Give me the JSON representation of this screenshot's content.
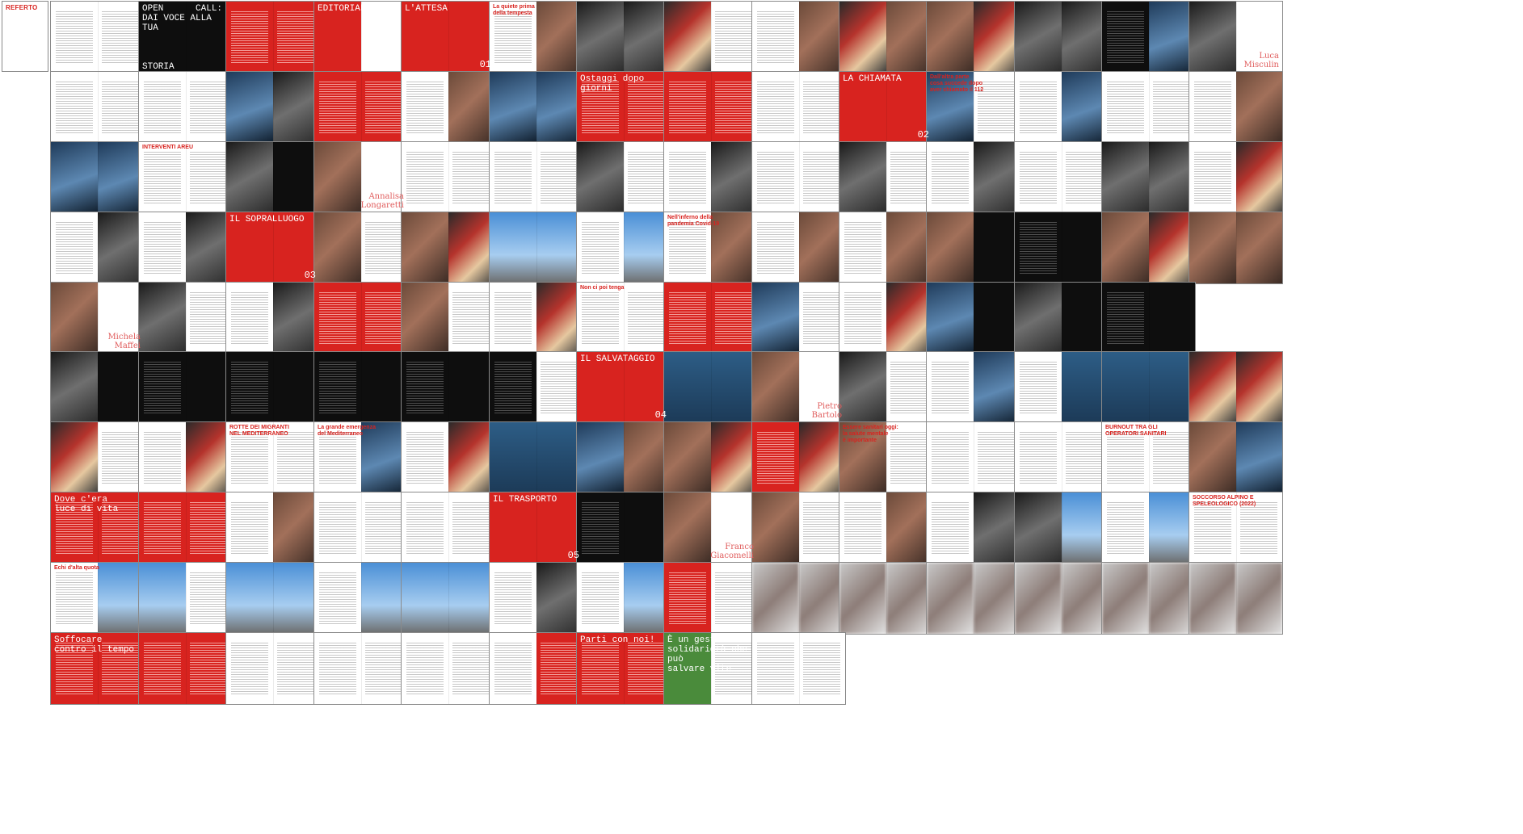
{
  "app": {
    "view": "Page thumbnails overview",
    "publication": "REFERTO"
  },
  "cover": {
    "masthead": "REFERTO"
  },
  "colors": {
    "brand_red": "#d8231f",
    "border": "#8a8a8a",
    "background": "#ffffff",
    "back_cover_green": "#4a8b3b"
  },
  "spreads": [
    {
      "row": 0,
      "col": 1,
      "l": "white",
      "r": "white",
      "label": "",
      "num": ""
    },
    {
      "row": 0,
      "col": 2,
      "l": "dark",
      "r": "dark",
      "label": "OPEN      CALL:\nDAI VOCE ALLA TUA\n\n\n              STORIA",
      "num": ""
    },
    {
      "row": 0,
      "col": 3,
      "l": "red",
      "r": "red",
      "label": "",
      "num": ""
    },
    {
      "row": 0,
      "col": 4,
      "l": "red",
      "r": "white",
      "label": "EDITORIALE",
      "num": ""
    },
    {
      "row": 0,
      "col": 5,
      "l": "red",
      "r": "red",
      "label": "L'ATTESA",
      "num": "01"
    },
    {
      "row": 0,
      "col": 6,
      "l": "white",
      "r": "photo-warm",
      "label": "La quiete prima\ndella tempesta",
      "num": "",
      "style": "red-text"
    },
    {
      "row": 0,
      "col": 7,
      "l": "photo-grey",
      "r": "photo-grey",
      "label": "",
      "num": ""
    },
    {
      "row": 0,
      "col": 8,
      "l": "photo-mix",
      "r": "white",
      "label": "",
      "num": ""
    },
    {
      "row": 0,
      "col": 9,
      "l": "white",
      "r": "photo-warm",
      "label": "",
      "num": ""
    },
    {
      "row": 0,
      "col": 10,
      "l": "photo-mix",
      "r": "photo-warm",
      "label": "",
      "num": ""
    },
    {
      "row": 0,
      "col": 11,
      "l": "photo-warm",
      "r": "photo-mix",
      "label": "",
      "num": ""
    },
    {
      "row": 0,
      "col": 12,
      "l": "photo-grey",
      "r": "photo-grey",
      "label": "",
      "num": ""
    },
    {
      "row": 0,
      "col": 13,
      "l": "dark",
      "r": "photo-cool",
      "label": "",
      "num": ""
    },
    {
      "row": 0,
      "col": 14,
      "l": "photo-grey",
      "r": "white",
      "label": "",
      "num": "",
      "name": "Luca\nMisculin"
    },
    {
      "row": 1,
      "col": 1,
      "l": "white",
      "r": "white",
      "label": "",
      "num": ""
    },
    {
      "row": 1,
      "col": 2,
      "l": "white",
      "r": "white",
      "label": "",
      "num": ""
    },
    {
      "row": 1,
      "col": 3,
      "l": "photo-cool",
      "r": "photo-grey",
      "label": "",
      "num": ""
    },
    {
      "row": 1,
      "col": 4,
      "l": "red",
      "r": "red",
      "label": "",
      "num": ""
    },
    {
      "row": 1,
      "col": 5,
      "l": "white",
      "r": "photo-warm",
      "label": "",
      "num": ""
    },
    {
      "row": 1,
      "col": 6,
      "l": "photo-cool",
      "r": "photo-cool",
      "label": "",
      "num": ""
    },
    {
      "row": 1,
      "col": 7,
      "l": "red",
      "r": "red",
      "label": "Ostaggi dopo giorni",
      "num": "",
      "style": "white-text"
    },
    {
      "row": 1,
      "col": 8,
      "l": "red",
      "r": "red",
      "label": "",
      "num": ""
    },
    {
      "row": 1,
      "col": 9,
      "l": "white",
      "r": "white",
      "label": "",
      "num": ""
    },
    {
      "row": 1,
      "col": 10,
      "l": "red",
      "r": "red",
      "label": "LA CHIAMATA",
      "num": "02"
    },
    {
      "row": 1,
      "col": 11,
      "l": "photo-cool",
      "r": "white",
      "label": "Dall'altra parte\ncosa succede dopo\naver chiamato il 112",
      "num": "",
      "style": "red-text"
    },
    {
      "row": 1,
      "col": 12,
      "l": "white",
      "r": "photo-cool",
      "label": "",
      "num": ""
    },
    {
      "row": 1,
      "col": 13,
      "l": "white",
      "r": "white",
      "label": "",
      "num": ""
    },
    {
      "row": 1,
      "col": 14,
      "l": "white",
      "r": "photo-warm",
      "label": "",
      "num": ""
    },
    {
      "row": 2,
      "col": 1,
      "l": "photo-cool",
      "r": "photo-cool",
      "label": "",
      "num": ""
    },
    {
      "row": 2,
      "col": 2,
      "l": "white",
      "r": "white",
      "label": "INTERVENTI AREU",
      "num": "",
      "style": "red-text"
    },
    {
      "row": 2,
      "col": 3,
      "l": "photo-grey",
      "r": "dark",
      "label": "",
      "num": ""
    },
    {
      "row": 2,
      "col": 4,
      "l": "photo-warm",
      "r": "white",
      "label": "",
      "num": "",
      "name": "Annalisa\nLongaretti"
    },
    {
      "row": 2,
      "col": 5,
      "l": "white",
      "r": "white",
      "label": "",
      "num": ""
    },
    {
      "row": 2,
      "col": 6,
      "l": "white",
      "r": "white",
      "label": "",
      "num": ""
    },
    {
      "row": 2,
      "col": 7,
      "l": "photo-grey",
      "r": "white",
      "label": "",
      "num": ""
    },
    {
      "row": 2,
      "col": 8,
      "l": "white",
      "r": "photo-grey",
      "label": "",
      "num": ""
    },
    {
      "row": 2,
      "col": 9,
      "l": "white",
      "r": "white",
      "label": "",
      "num": ""
    },
    {
      "row": 2,
      "col": 10,
      "l": "photo-grey",
      "r": "white",
      "label": "",
      "num": ""
    },
    {
      "row": 2,
      "col": 11,
      "l": "white",
      "r": "photo-grey",
      "label": "",
      "num": ""
    },
    {
      "row": 2,
      "col": 12,
      "l": "white",
      "r": "white",
      "label": "",
      "num": ""
    },
    {
      "row": 2,
      "col": 13,
      "l": "photo-grey",
      "r": "photo-grey",
      "label": "",
      "num": ""
    },
    {
      "row": 2,
      "col": 14,
      "l": "white",
      "r": "photo-mix",
      "label": "",
      "num": ""
    },
    {
      "row": 3,
      "col": 1,
      "l": "white",
      "r": "photo-grey",
      "label": "",
      "num": ""
    },
    {
      "row": 3,
      "col": 2,
      "l": "white",
      "r": "photo-grey",
      "label": "",
      "num": ""
    },
    {
      "row": 3,
      "col": 3,
      "l": "red",
      "r": "red",
      "label": "IL SOPRALLUOGO",
      "num": "03"
    },
    {
      "row": 3,
      "col": 4,
      "l": "photo-warm",
      "r": "white",
      "label": "",
      "num": ""
    },
    {
      "row": 3,
      "col": 5,
      "l": "photo-warm",
      "r": "photo-mix",
      "label": "",
      "num": ""
    },
    {
      "row": 3,
      "col": 6,
      "l": "photo-sky",
      "r": "photo-sky",
      "label": "",
      "num": ""
    },
    {
      "row": 3,
      "col": 7,
      "l": "white",
      "r": "photo-sky",
      "label": "",
      "num": ""
    },
    {
      "row": 3,
      "col": 8,
      "l": "white",
      "r": "photo-warm",
      "label": "Nell'inferno della\npandemia Covid-19",
      "num": "",
      "style": "red-text"
    },
    {
      "row": 3,
      "col": 9,
      "l": "white",
      "r": "photo-warm",
      "label": "",
      "num": ""
    },
    {
      "row": 3,
      "col": 10,
      "l": "white",
      "r": "photo-warm",
      "label": "",
      "num": ""
    },
    {
      "row": 3,
      "col": 11,
      "l": "photo-warm",
      "r": "dark",
      "label": "",
      "num": ""
    },
    {
      "row": 3,
      "col": 12,
      "l": "dark",
      "r": "dark",
      "label": "",
      "num": ""
    },
    {
      "row": 3,
      "col": 13,
      "l": "photo-warm",
      "r": "photo-mix",
      "label": "",
      "num": ""
    },
    {
      "row": 3,
      "col": 14,
      "l": "photo-warm",
      "r": "photo-warm",
      "label": "",
      "num": ""
    },
    {
      "row": 4,
      "col": 1,
      "l": "photo-warm",
      "r": "white",
      "label": "",
      "num": "",
      "name": "Michela\nMaffei"
    },
    {
      "row": 4,
      "col": 2,
      "l": "photo-grey",
      "r": "white",
      "label": "",
      "num": ""
    },
    {
      "row": 4,
      "col": 3,
      "l": "white",
      "r": "photo-grey",
      "label": "",
      "num": ""
    },
    {
      "row": 4,
      "col": 4,
      "l": "red",
      "r": "red",
      "label": "",
      "num": ""
    },
    {
      "row": 4,
      "col": 5,
      "l": "photo-warm",
      "r": "white",
      "label": "",
      "num": ""
    },
    {
      "row": 4,
      "col": 6,
      "l": "white",
      "r": "photo-mix",
      "label": "",
      "num": ""
    },
    {
      "row": 4,
      "col": 7,
      "l": "white",
      "r": "white",
      "label": "Non ci poi tenga",
      "num": "",
      "style": "red-text"
    },
    {
      "row": 4,
      "col": 8,
      "l": "red",
      "r": "red",
      "label": "",
      "num": ""
    },
    {
      "row": 4,
      "col": 9,
      "l": "photo-cool",
      "r": "white",
      "label": "",
      "num": ""
    },
    {
      "row": 4,
      "col": 10,
      "l": "white",
      "r": "photo-mix",
      "label": "",
      "num": ""
    },
    {
      "row": 4,
      "col": 11,
      "l": "photo-cool",
      "r": "dark",
      "label": "",
      "num": ""
    },
    {
      "row": 4,
      "col": 12,
      "l": "photo-grey",
      "r": "dark",
      "label": "",
      "num": ""
    },
    {
      "row": 4,
      "col": 13,
      "l": "dark",
      "r": "dark",
      "label": "",
      "num": ""
    },
    {
      "row": 5,
      "col": 1,
      "l": "photo-grey",
      "r": "dark",
      "label": "",
      "num": ""
    },
    {
      "row": 5,
      "col": 2,
      "l": "dark",
      "r": "dark",
      "label": "",
      "num": ""
    },
    {
      "row": 5,
      "col": 3,
      "l": "dark",
      "r": "dark",
      "label": "",
      "num": ""
    },
    {
      "row": 5,
      "col": 4,
      "l": "dark",
      "r": "dark",
      "label": "",
      "num": ""
    },
    {
      "row": 5,
      "col": 5,
      "l": "dark",
      "r": "dark",
      "label": "",
      "num": ""
    },
    {
      "row": 5,
      "col": 6,
      "l": "dark",
      "r": "white",
      "label": "",
      "num": ""
    },
    {
      "row": 5,
      "col": 7,
      "l": "red",
      "r": "red",
      "label": "IL SALVATAGGIO",
      "num": "04"
    },
    {
      "row": 5,
      "col": 8,
      "l": "photo-sea",
      "r": "photo-sea",
      "label": "",
      "num": ""
    },
    {
      "row": 5,
      "col": 9,
      "l": "photo-warm",
      "r": "white",
      "label": "",
      "num": "",
      "name": "Pietro\nBartolo"
    },
    {
      "row": 5,
      "col": 10,
      "l": "photo-grey",
      "r": "white",
      "label": "",
      "num": ""
    },
    {
      "row": 5,
      "col": 11,
      "l": "white",
      "r": "photo-cool",
      "label": "",
      "num": ""
    },
    {
      "row": 5,
      "col": 12,
      "l": "white",
      "r": "photo-sea",
      "label": "",
      "num": ""
    },
    {
      "row": 5,
      "col": 13,
      "l": "photo-sea",
      "r": "photo-sea",
      "label": "",
      "num": ""
    },
    {
      "row": 5,
      "col": 14,
      "l": "photo-mix",
      "r": "photo-mix",
      "label": "",
      "num": ""
    },
    {
      "row": 6,
      "col": 1,
      "l": "photo-mix",
      "r": "white",
      "label": "",
      "num": ""
    },
    {
      "row": 6,
      "col": 2,
      "l": "white",
      "r": "photo-mix",
      "label": "",
      "num": ""
    },
    {
      "row": 6,
      "col": 3,
      "l": "white",
      "r": "white",
      "label": "ROTTE DEI MIGRANTI\nNEL MEDITERRANEO",
      "num": "",
      "style": "red-text"
    },
    {
      "row": 6,
      "col": 4,
      "l": "white",
      "r": "photo-cool",
      "label": "La grande emergenza\ndel Mediterraneo",
      "num": "",
      "style": "red-text"
    },
    {
      "row": 6,
      "col": 5,
      "l": "white",
      "r": "photo-mix",
      "label": "",
      "num": ""
    },
    {
      "row": 6,
      "col": 6,
      "l": "photo-sea",
      "r": "photo-sea",
      "label": "",
      "num": ""
    },
    {
      "row": 6,
      "col": 7,
      "l": "photo-cool",
      "r": "photo-warm",
      "label": "",
      "num": ""
    },
    {
      "row": 6,
      "col": 8,
      "l": "photo-warm",
      "r": "photo-mix",
      "label": "",
      "num": ""
    },
    {
      "row": 6,
      "col": 9,
      "l": "red",
      "r": "photo-mix",
      "label": "",
      "num": ""
    },
    {
      "row": 6,
      "col": 10,
      "l": "photo-warm",
      "r": "white",
      "label": "Essere sanitari oggi:\nla salute mentale\nè importante",
      "num": "",
      "style": "red-text"
    },
    {
      "row": 6,
      "col": 11,
      "l": "white",
      "r": "white",
      "label": "",
      "num": ""
    },
    {
      "row": 6,
      "col": 12,
      "l": "white",
      "r": "white",
      "label": "",
      "num": ""
    },
    {
      "row": 6,
      "col": 13,
      "l": "white",
      "r": "white",
      "label": "BURNOUT TRA GLI\nOPERATORI SANITARI",
      "num": "",
      "style": "red-text"
    },
    {
      "row": 6,
      "col": 14,
      "l": "photo-warm",
      "r": "photo-cool",
      "label": "",
      "num": ""
    },
    {
      "row": 7,
      "col": 1,
      "l": "red",
      "r": "red",
      "label": "Dove c'era\nluce di vita",
      "num": "",
      "style": "white-text"
    },
    {
      "row": 7,
      "col": 2,
      "l": "red",
      "r": "red",
      "label": "",
      "num": ""
    },
    {
      "row": 7,
      "col": 3,
      "l": "white",
      "r": "photo-warm",
      "label": "",
      "num": ""
    },
    {
      "row": 7,
      "col": 4,
      "l": "white",
      "r": "white",
      "label": "",
      "num": ""
    },
    {
      "row": 7,
      "col": 5,
      "l": "white",
      "r": "white",
      "label": "",
      "num": ""
    },
    {
      "row": 7,
      "col": 6,
      "l": "red",
      "r": "red",
      "label": "IL TRASPORTO",
      "num": "05"
    },
    {
      "row": 7,
      "col": 7,
      "l": "dark",
      "r": "dark",
      "label": "",
      "num": ""
    },
    {
      "row": 7,
      "col": 8,
      "l": "photo-warm",
      "r": "white",
      "label": "",
      "num": "",
      "name": "Franco\nGiacomelli"
    },
    {
      "row": 7,
      "col": 9,
      "l": "photo-warm",
      "r": "white",
      "label": "",
      "num": ""
    },
    {
      "row": 7,
      "col": 10,
      "l": "white",
      "r": "photo-warm",
      "label": "",
      "num": ""
    },
    {
      "row": 7,
      "col": 11,
      "l": "white",
      "r": "photo-grey",
      "label": "",
      "num": ""
    },
    {
      "row": 7,
      "col": 12,
      "l": "photo-grey",
      "r": "photo-sky",
      "label": "",
      "num": ""
    },
    {
      "row": 7,
      "col": 13,
      "l": "white",
      "r": "photo-sky",
      "label": "",
      "num": ""
    },
    {
      "row": 7,
      "col": 14,
      "l": "white",
      "r": "white",
      "label": "SOCCORSO ALPINO E\nSPELEOLOGICO (2022)",
      "num": "",
      "style": "red-text"
    },
    {
      "row": 8,
      "col": 1,
      "l": "white",
      "r": "photo-sky",
      "label": "Echi d'alta quota",
      "num": "",
      "style": "red-text"
    },
    {
      "row": 8,
      "col": 2,
      "l": "photo-sky",
      "r": "white",
      "label": "",
      "num": ""
    },
    {
      "row": 8,
      "col": 3,
      "l": "photo-sky",
      "r": "photo-sky",
      "label": "",
      "num": ""
    },
    {
      "row": 8,
      "col": 4,
      "l": "white",
      "r": "photo-sky",
      "label": "",
      "num": ""
    },
    {
      "row": 8,
      "col": 5,
      "l": "photo-sky",
      "r": "photo-sky",
      "label": "",
      "num": ""
    },
    {
      "row": 8,
      "col": 6,
      "l": "white",
      "r": "photo-grey",
      "label": "",
      "num": ""
    },
    {
      "row": 8,
      "col": 7,
      "l": "white",
      "r": "photo-sky",
      "label": "",
      "num": ""
    },
    {
      "row": 8,
      "col": 8,
      "l": "red",
      "r": "white",
      "label": "",
      "num": ""
    },
    {
      "row": 8,
      "col": 9,
      "l": "blur",
      "r": "blur",
      "label": "",
      "num": ""
    },
    {
      "row": 8,
      "col": 10,
      "l": "blur",
      "r": "blur",
      "label": "",
      "num": ""
    },
    {
      "row": 8,
      "col": 11,
      "l": "blur",
      "r": "blur",
      "label": "",
      "num": ""
    },
    {
      "row": 8,
      "col": 12,
      "l": "blur",
      "r": "blur",
      "label": "",
      "num": ""
    },
    {
      "row": 8,
      "col": 13,
      "l": "blur",
      "r": "blur",
      "label": "",
      "num": ""
    },
    {
      "row": 8,
      "col": 14,
      "l": "blur",
      "r": "blur",
      "label": "",
      "num": ""
    },
    {
      "row": 9,
      "col": 1,
      "l": "red",
      "r": "red",
      "label": "Soffocare\ncontro il tempo",
      "num": "",
      "style": "white-text"
    },
    {
      "row": 9,
      "col": 2,
      "l": "red",
      "r": "red",
      "label": "",
      "num": ""
    },
    {
      "row": 9,
      "col": 3,
      "l": "white",
      "r": "white",
      "label": "",
      "num": ""
    },
    {
      "row": 9,
      "col": 4,
      "l": "white",
      "r": "white",
      "label": "",
      "num": ""
    },
    {
      "row": 9,
      "col": 5,
      "l": "white",
      "r": "white",
      "label": "",
      "num": ""
    },
    {
      "row": 9,
      "col": 6,
      "l": "white",
      "r": "red",
      "label": "",
      "num": ""
    },
    {
      "row": 9,
      "col": 7,
      "l": "red",
      "r": "red",
      "label": "Parti con noi!",
      "num": "",
      "style": "white-text"
    },
    {
      "row": 9,
      "col": 8,
      "l": "green",
      "r": "white",
      "label": "È un gesto di\nsolidarietà che può\nsalvare vite",
      "num": "",
      "style": "white-text"
    },
    {
      "row": 9,
      "col": 9,
      "l": "white",
      "r": "white",
      "label": "",
      "num": ""
    }
  ]
}
